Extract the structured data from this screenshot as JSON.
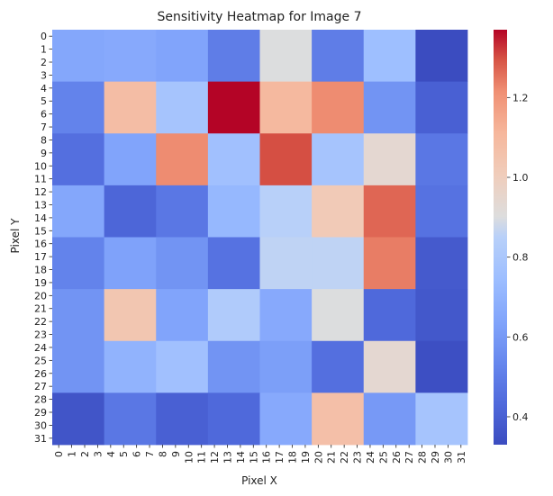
{
  "chart_data": {
    "type": "heatmap",
    "title": "Sensitivity Heatmap for Image 7",
    "xlabel": "Pixel X",
    "ylabel": "Pixel Y",
    "x_ticks": [
      "0",
      "1",
      "2",
      "3",
      "4",
      "5",
      "6",
      "7",
      "8",
      "9",
      "10",
      "11",
      "12",
      "13",
      "14",
      "15",
      "16",
      "17",
      "18",
      "19",
      "20",
      "21",
      "22",
      "23",
      "24",
      "25",
      "26",
      "27",
      "28",
      "29",
      "30",
      "31"
    ],
    "y_ticks": [
      "0",
      "1",
      "2",
      "3",
      "4",
      "5",
      "6",
      "7",
      "8",
      "9",
      "10",
      "11",
      "12",
      "13",
      "14",
      "15",
      "16",
      "17",
      "18",
      "19",
      "20",
      "21",
      "22",
      "23",
      "24",
      "25",
      "26",
      "27",
      "28",
      "29",
      "30",
      "31"
    ],
    "block_size": 4,
    "values": [
      [
        0.65,
        0.66,
        0.64,
        0.5,
        0.9,
        0.5,
        0.75,
        0.33
      ],
      [
        0.52,
        1.08,
        0.78,
        1.37,
        1.1,
        1.22,
        0.58,
        0.4
      ],
      [
        0.45,
        0.64,
        1.22,
        0.76,
        1.3,
        0.78,
        0.94,
        0.48
      ],
      [
        0.65,
        0.42,
        0.48,
        0.72,
        0.85,
        1.02,
        1.27,
        0.46
      ],
      [
        0.52,
        0.63,
        0.58,
        0.46,
        0.86,
        0.86,
        1.24,
        0.38
      ],
      [
        0.58,
        1.04,
        0.64,
        0.82,
        0.66,
        0.9,
        0.43,
        0.37
      ],
      [
        0.58,
        0.7,
        0.76,
        0.58,
        0.62,
        0.45,
        0.94,
        0.34
      ],
      [
        0.36,
        0.48,
        0.4,
        0.43,
        0.66,
        1.07,
        0.6,
        0.78
      ]
    ],
    "vmin": 0.33,
    "vmax": 1.37,
    "colorbar_ticks": [
      "0.4",
      "0.6",
      "0.8",
      "1.0",
      "1.2"
    ],
    "colormap": "coolwarm"
  }
}
